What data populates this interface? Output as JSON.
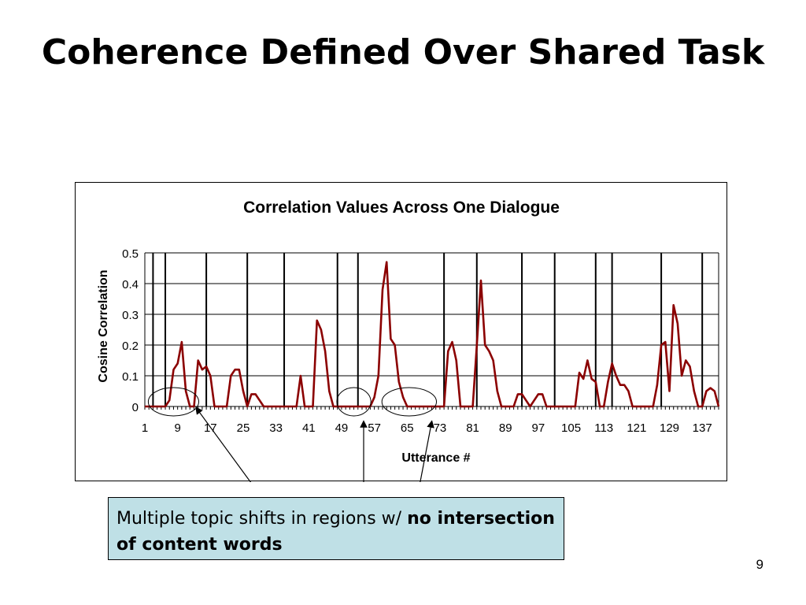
{
  "slide": {
    "title": "Coherence Defined Over Shared Task",
    "callout_text": "Multiple topic shifts in regions w/ ",
    "callout_bold": "no intersection of content words",
    "page_number": "9"
  },
  "chart_data": {
    "type": "line",
    "title": "Correlation Values Across One Dialogue",
    "xlabel": "Utterance #",
    "ylabel": "Cosine Correlation",
    "ylim": [
      0,
      0.5
    ],
    "yticks": [
      "0",
      "0.1",
      "0.2",
      "0.3",
      "0.4",
      "0.5"
    ],
    "xticks": [
      "1",
      "9",
      "17",
      "25",
      "33",
      "41",
      "49",
      "57",
      "65",
      "73",
      "81",
      "89",
      "97",
      "105",
      "113",
      "121",
      "129",
      "137"
    ],
    "xlim": [
      1,
      141
    ],
    "grid": true,
    "series_color": "#8b0000",
    "x": [
      1,
      2,
      3,
      4,
      5,
      6,
      7,
      8,
      9,
      10,
      11,
      12,
      13,
      14,
      15,
      16,
      17,
      18,
      19,
      20,
      21,
      22,
      23,
      24,
      25,
      26,
      27,
      28,
      29,
      30,
      31,
      32,
      33,
      34,
      35,
      36,
      37,
      38,
      39,
      40,
      41,
      42,
      43,
      44,
      45,
      46,
      47,
      48,
      49,
      50,
      51,
      52,
      53,
      54,
      55,
      56,
      57,
      58,
      59,
      60,
      61,
      62,
      63,
      64,
      65,
      66,
      67,
      68,
      69,
      70,
      71,
      72,
      73,
      74,
      75,
      76,
      77,
      78,
      79,
      80,
      81,
      82,
      83,
      84,
      85,
      86,
      87,
      88,
      89,
      90,
      91,
      92,
      93,
      94,
      95,
      96,
      97,
      98,
      99,
      100,
      101,
      102,
      103,
      104,
      105,
      106,
      107,
      108,
      109,
      110,
      111,
      112,
      113,
      114,
      115,
      116,
      117,
      118,
      119,
      120,
      121,
      122,
      123,
      124,
      125,
      126,
      127,
      128,
      129,
      130,
      131,
      132,
      133,
      134,
      135,
      136,
      137,
      138,
      139,
      140,
      141
    ],
    "y": [
      0,
      0,
      0,
      0,
      0,
      0,
      0.02,
      0.12,
      0.14,
      0.21,
      0.05,
      0,
      0,
      0.15,
      0.12,
      0.13,
      0.1,
      0,
      0,
      0,
      0,
      0.1,
      0.12,
      0.12,
      0.05,
      0,
      0.04,
      0.04,
      0.02,
      0,
      0,
      0,
      0,
      0,
      0,
      0,
      0,
      0,
      0.1,
      0,
      0,
      0,
      0.28,
      0.25,
      0.18,
      0.05,
      0,
      0,
      0,
      0,
      0,
      0,
      0,
      0,
      0,
      0,
      0.03,
      0.1,
      0.38,
      0.47,
      0.22,
      0.2,
      0.08,
      0.03,
      0,
      0,
      0,
      0,
      0,
      0,
      0,
      0,
      0,
      0,
      0.18,
      0.21,
      0.15,
      0,
      0,
      0,
      0,
      0.2,
      0.41,
      0.2,
      0.18,
      0.15,
      0.05,
      0,
      0,
      0,
      0,
      0.04,
      0.04,
      0.02,
      0,
      0.02,
      0.04,
      0.04,
      0,
      0,
      0,
      0,
      0,
      0,
      0,
      0,
      0.11,
      0.09,
      0.15,
      0.09,
      0.08,
      0,
      0,
      0.08,
      0.14,
      0.1,
      0.07,
      0.07,
      0.05,
      0,
      0,
      0,
      0,
      0,
      0,
      0.07,
      0.2,
      0.21,
      0.05,
      0.33,
      0.27,
      0.1,
      0.15,
      0.13,
      0.05,
      0,
      0,
      0.05,
      0.06,
      0.05,
      0
    ]
  },
  "annotations": {
    "shift_line_utterances": [
      3,
      6,
      16,
      26,
      35,
      48,
      53,
      74,
      82,
      93,
      101,
      111,
      115,
      127,
      137
    ]
  }
}
